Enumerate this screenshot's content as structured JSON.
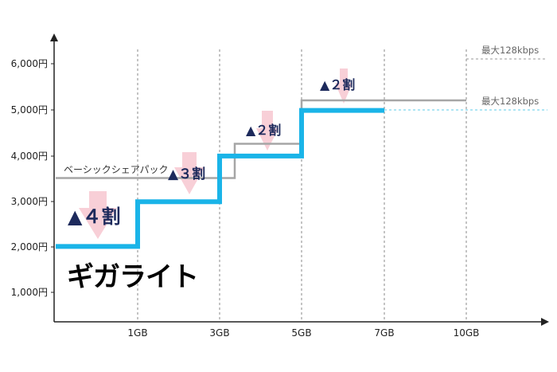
{
  "chart_data": {
    "type": "line",
    "x_ticks": [
      "1GB",
      "3GB",
      "5GB",
      "7GB",
      "10GB"
    ],
    "y_ticks": [
      "1,000円",
      "2,000円",
      "3,000円",
      "4,000円",
      "5,000円",
      "6,000円"
    ],
    "ylim": [
      0,
      6500
    ],
    "grid": "vertical dashed",
    "series": [
      {
        "name": "ベーシックシェアパック",
        "color": "#a6a6a6",
        "steps": [
          3500,
          3500,
          4250,
          5200,
          6100,
          6100,
          6100
        ]
      },
      {
        "name": "ギガライト",
        "color": "#1ab4e8",
        "steps": [
          2000,
          2980,
          3980,
          4980,
          4980
        ]
      }
    ],
    "annotations": {
      "gray_cap": "最大128kbps",
      "blue_cap": "最大128kbps",
      "discounts": [
        "▲４割",
        "▲３割",
        "▲２割",
        "▲２割"
      ]
    }
  },
  "icons": [
    "down-arrow-icon",
    "down-arrow-icon",
    "down-arrow-icon",
    "down-arrow-icon"
  ]
}
